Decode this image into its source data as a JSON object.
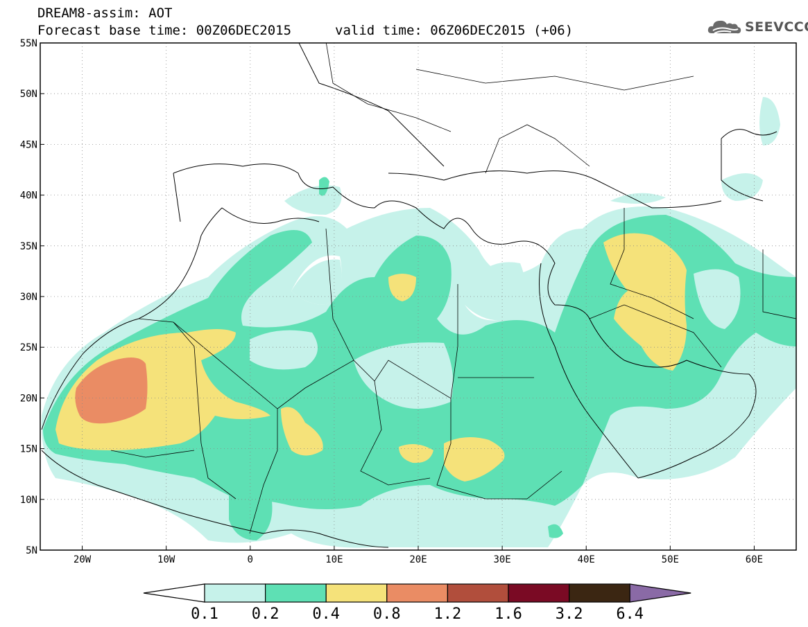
{
  "header": {
    "title": "DREAM8-assim: AOT",
    "base_time": "Forecast base time: 00Z06DEC2015",
    "valid_time": "valid time: 06Z06DEC2015 (+06)",
    "logo_text": "SEEVCCC",
    "logo_icon": "cloud-icon"
  },
  "map": {
    "lon_range": [
      -25,
      65
    ],
    "lat_range": [
      5,
      55
    ],
    "lat_labels": [
      "55N",
      "50N",
      "45N",
      "40N",
      "35N",
      "30N",
      "25N",
      "20N",
      "15N",
      "10N",
      "5N"
    ],
    "lat_values": [
      55,
      50,
      45,
      40,
      35,
      30,
      25,
      20,
      15,
      10,
      5
    ],
    "lon_labels": [
      "20W",
      "10W",
      "0",
      "10E",
      "20E",
      "30E",
      "40E",
      "50E",
      "60E"
    ],
    "lon_values": [
      -20,
      -10,
      0,
      10,
      20,
      30,
      40,
      50,
      60
    ],
    "gridlines": "dotted"
  },
  "legend": {
    "labels": [
      "0.1",
      "0.2",
      "0.4",
      "0.8",
      "1.2",
      "1.6",
      "3.2",
      "6.4"
    ],
    "colors": [
      "#ffffff",
      "#c6f2ea",
      "#5ee0b4",
      "#f5e27a",
      "#ea8c64",
      "#b14e3c",
      "#7a0a24",
      "#3b2612",
      "#8a6aa6"
    ]
  }
}
